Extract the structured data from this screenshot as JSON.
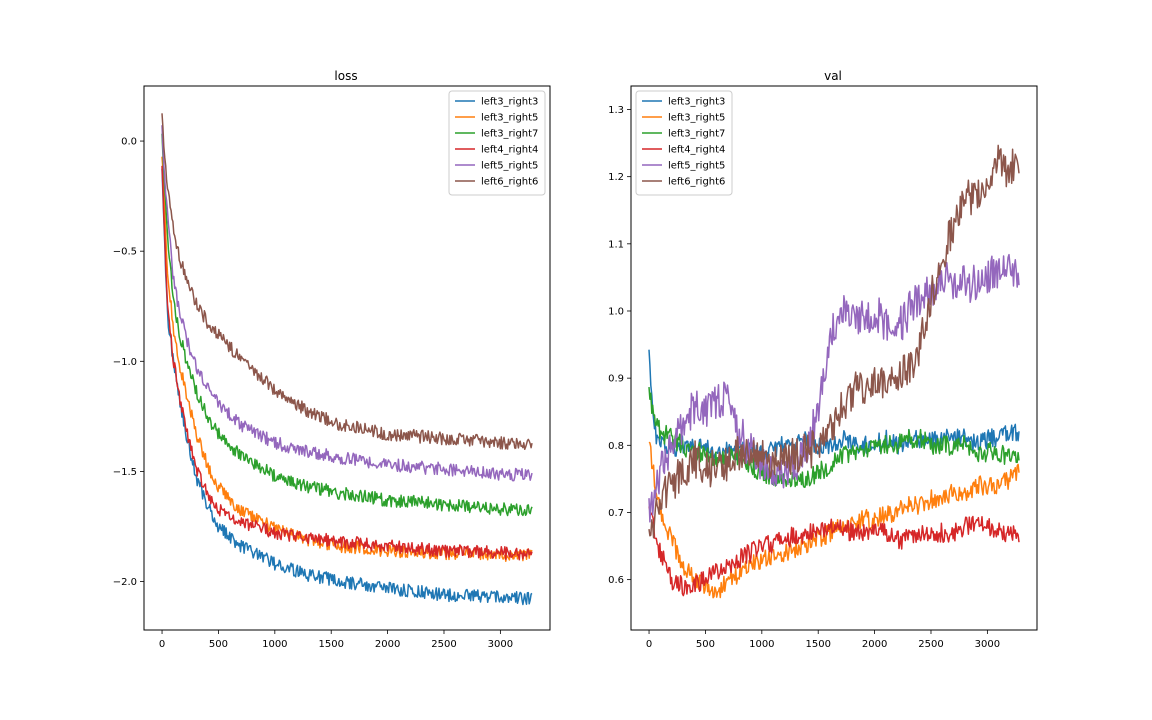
{
  "chart_data": [
    {
      "type": "line",
      "title": "loss",
      "xlabel": "",
      "ylabel": "",
      "xlim": [
        -160,
        3440
      ],
      "ylim": [
        -2.22,
        0.25
      ],
      "xticks": [
        0,
        500,
        1000,
        1500,
        2000,
        2500,
        3000
      ],
      "yticks": [
        0.0,
        -0.5,
        -1.0,
        -1.5,
        -2.0
      ],
      "ytick_labels": [
        "0.0",
        "−0.5",
        "−1.0",
        "−1.5",
        "−2.0"
      ],
      "grid": false,
      "legend": "top-right",
      "x": [
        0,
        20,
        50,
        100,
        150,
        200,
        300,
        400,
        500,
        700,
        1000,
        1300,
        1600,
        2000,
        2500,
        3000,
        3280
      ],
      "series": [
        {
          "name": "left3_right3",
          "color": "#1f77b4",
          "values": [
            -0.1,
            -0.45,
            -0.8,
            -1.0,
            -1.15,
            -1.3,
            -1.52,
            -1.65,
            -1.75,
            -1.84,
            -1.92,
            -1.97,
            -2.0,
            -2.03,
            -2.06,
            -2.07,
            -2.08
          ]
        },
        {
          "name": "left3_right5",
          "color": "#ff7f0e",
          "values": [
            -0.05,
            -0.3,
            -0.6,
            -0.85,
            -1.0,
            -1.12,
            -1.32,
            -1.47,
            -1.57,
            -1.68,
            -1.76,
            -1.81,
            -1.84,
            -1.86,
            -1.87,
            -1.88,
            -1.88
          ]
        },
        {
          "name": "left3_right7",
          "color": "#2ca02c",
          "values": [
            0.05,
            -0.2,
            -0.45,
            -0.72,
            -0.86,
            -0.97,
            -1.13,
            -1.25,
            -1.33,
            -1.43,
            -1.52,
            -1.57,
            -1.6,
            -1.63,
            -1.65,
            -1.67,
            -1.68
          ]
        },
        {
          "name": "left4_right4",
          "color": "#d62728",
          "values": [
            -0.1,
            -0.4,
            -0.75,
            -1.0,
            -1.15,
            -1.28,
            -1.48,
            -1.6,
            -1.67,
            -1.73,
            -1.78,
            -1.8,
            -1.82,
            -1.84,
            -1.86,
            -1.87,
            -1.88
          ]
        },
        {
          "name": "left5_right5",
          "color": "#9467bd",
          "values": [
            0.08,
            -0.15,
            -0.35,
            -0.62,
            -0.76,
            -0.87,
            -1.02,
            -1.12,
            -1.19,
            -1.29,
            -1.37,
            -1.41,
            -1.44,
            -1.47,
            -1.49,
            -1.51,
            -1.52
          ]
        },
        {
          "name": "left6_right6",
          "color": "#8c564b",
          "values": [
            0.13,
            -0.05,
            -0.22,
            -0.4,
            -0.52,
            -0.6,
            -0.73,
            -0.82,
            -0.88,
            -0.99,
            -1.13,
            -1.23,
            -1.29,
            -1.33,
            -1.35,
            -1.37,
            -1.38
          ]
        }
      ]
    },
    {
      "type": "line",
      "title": "val",
      "xlabel": "",
      "ylabel": "",
      "xlim": [
        -160,
        3440
      ],
      "ylim": [
        0.525,
        1.335
      ],
      "xticks": [
        0,
        500,
        1000,
        1500,
        2000,
        2500,
        3000
      ],
      "yticks": [
        0.6,
        0.7,
        0.8,
        0.9,
        1.0,
        1.1,
        1.2,
        1.3
      ],
      "ytick_labels": [
        "0.6",
        "0.7",
        "0.8",
        "0.9",
        "1.0",
        "1.1",
        "1.2",
        "1.3"
      ],
      "grid": false,
      "legend": "top-left",
      "x": [
        0,
        50,
        100,
        200,
        300,
        400,
        500,
        600,
        700,
        800,
        900,
        1000,
        1200,
        1400,
        1500,
        1600,
        1700,
        1800,
        1900,
        2000,
        2100,
        2200,
        2300,
        2400,
        2500,
        2600,
        2700,
        2800,
        2900,
        3000,
        3100,
        3200,
        3280
      ],
      "series": [
        {
          "name": "left3_right3",
          "color": "#1f77b4",
          "values": [
            0.94,
            0.82,
            0.8,
            0.79,
            0.8,
            0.8,
            0.8,
            0.79,
            0.79,
            0.79,
            0.79,
            0.79,
            0.8,
            0.81,
            0.8,
            0.8,
            0.81,
            0.8,
            0.8,
            0.8,
            0.81,
            0.8,
            0.81,
            0.81,
            0.81,
            0.81,
            0.81,
            0.81,
            0.8,
            0.81,
            0.81,
            0.82,
            0.82
          ]
        },
        {
          "name": "left3_right5",
          "color": "#ff7f0e",
          "values": [
            0.8,
            0.75,
            0.7,
            0.66,
            0.62,
            0.6,
            0.59,
            0.58,
            0.6,
            0.61,
            0.62,
            0.63,
            0.64,
            0.65,
            0.66,
            0.67,
            0.68,
            0.68,
            0.69,
            0.69,
            0.7,
            0.7,
            0.71,
            0.71,
            0.72,
            0.72,
            0.73,
            0.73,
            0.74,
            0.74,
            0.74,
            0.75,
            0.76
          ]
        },
        {
          "name": "left3_right7",
          "color": "#2ca02c",
          "values": [
            0.88,
            0.84,
            0.82,
            0.81,
            0.8,
            0.79,
            0.79,
            0.78,
            0.78,
            0.78,
            0.77,
            0.76,
            0.75,
            0.75,
            0.76,
            0.77,
            0.78,
            0.79,
            0.79,
            0.8,
            0.8,
            0.8,
            0.81,
            0.81,
            0.8,
            0.8,
            0.8,
            0.8,
            0.79,
            0.79,
            0.79,
            0.78,
            0.78
          ]
        },
        {
          "name": "left4_right4",
          "color": "#d62728",
          "values": [
            0.7,
            0.67,
            0.64,
            0.6,
            0.59,
            0.59,
            0.6,
            0.61,
            0.62,
            0.63,
            0.64,
            0.65,
            0.66,
            0.67,
            0.67,
            0.68,
            0.68,
            0.67,
            0.67,
            0.67,
            0.67,
            0.66,
            0.66,
            0.67,
            0.67,
            0.67,
            0.67,
            0.68,
            0.68,
            0.68,
            0.67,
            0.67,
            0.66
          ]
        },
        {
          "name": "left5_right5",
          "color": "#9467bd",
          "values": [
            0.7,
            0.72,
            0.76,
            0.8,
            0.83,
            0.86,
            0.85,
            0.86,
            0.88,
            0.82,
            0.79,
            0.77,
            0.76,
            0.79,
            0.86,
            0.96,
            1.0,
            0.98,
            0.99,
            1.0,
            0.98,
            0.97,
            1.0,
            1.02,
            1.03,
            1.05,
            1.04,
            1.04,
            1.04,
            1.05,
            1.06,
            1.07,
            1.05
          ]
        },
        {
          "name": "left6_right6",
          "color": "#8c564b",
          "values": [
            0.65,
            0.7,
            0.72,
            0.74,
            0.76,
            0.78,
            0.77,
            0.76,
            0.77,
            0.79,
            0.78,
            0.78,
            0.78,
            0.79,
            0.8,
            0.82,
            0.85,
            0.88,
            0.89,
            0.89,
            0.9,
            0.9,
            0.91,
            0.95,
            1.02,
            1.08,
            1.13,
            1.16,
            1.18,
            1.19,
            1.22,
            1.21,
            1.22
          ]
        }
      ]
    }
  ]
}
